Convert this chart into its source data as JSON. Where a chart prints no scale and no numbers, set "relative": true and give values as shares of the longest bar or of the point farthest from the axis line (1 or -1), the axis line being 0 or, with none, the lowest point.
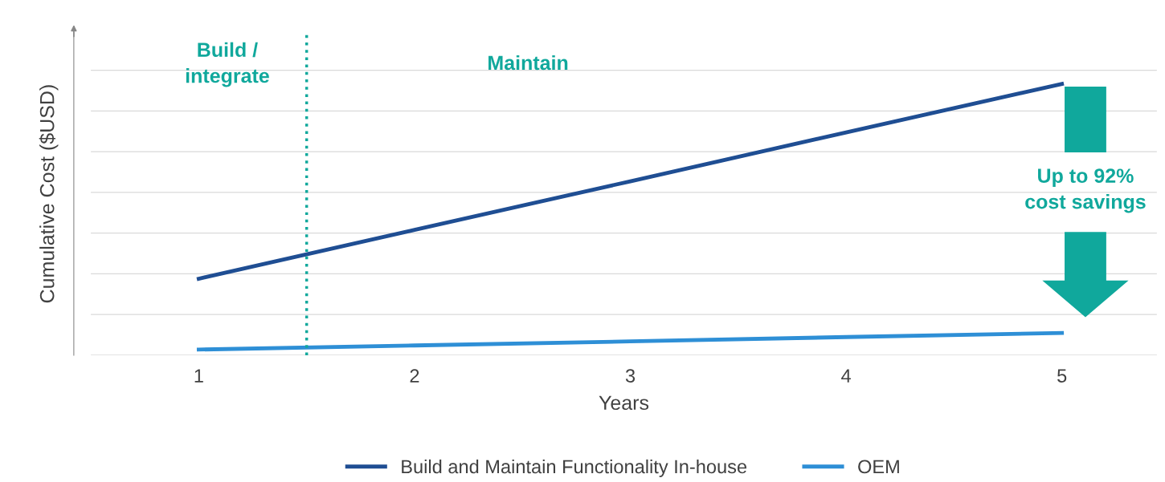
{
  "chart_data": {
    "type": "line",
    "relative": true,
    "ylabel": "Cumulative Cost ($USD)",
    "xlabel": "Years",
    "x": [
      1,
      2,
      3,
      4,
      5
    ],
    "xlim": [
      0.5,
      5.44
    ],
    "xticks": [
      1,
      2,
      3,
      4,
      5
    ],
    "series": [
      {
        "name": "Build and Maintain Functionality In-house",
        "color": "#1f4e93",
        "values": [
          0.282,
          0.462,
          0.641,
          0.821,
          1
        ]
      },
      {
        "name": "OEM",
        "color": "#2e8fd6",
        "values": [
          0.021,
          0.036,
          0.051,
          0.067,
          0.082
        ]
      }
    ],
    "ref_lines": [
      {
        "axis": "x",
        "value": 1.5,
        "color": "#10a89c",
        "line_style": "dotted"
      }
    ],
    "annotations": [
      "Build /\nintegrate",
      "Maintain",
      "Up to 92%\ncost savings"
    ],
    "grid": "y",
    "legend": "bottom",
    "marker": "none",
    "line_style": "solid"
  }
}
